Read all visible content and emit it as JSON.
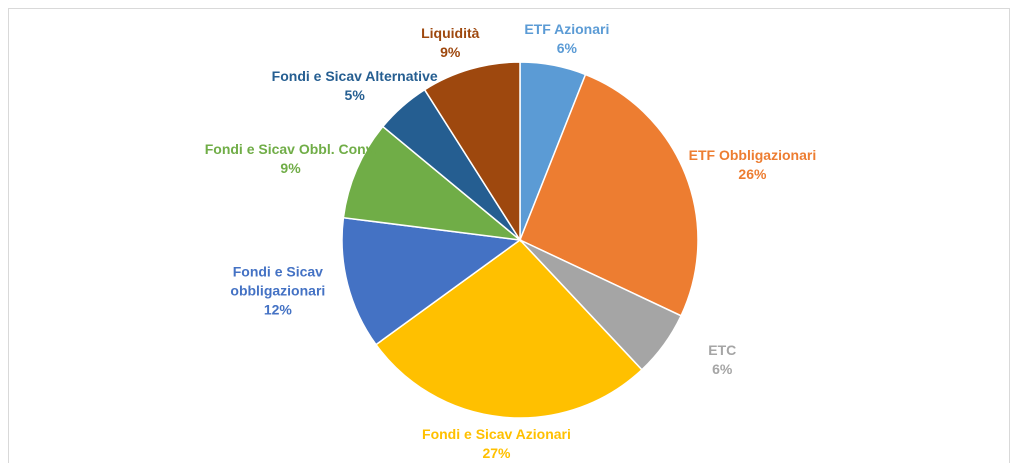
{
  "chart_data": {
    "type": "pie",
    "categories": [
      "ETF Azionari",
      "ETF Obbligazionari",
      "ETC",
      "Fondi e Sicav Azionari",
      "Fondi e Sicav obbligazionari",
      "Fondi e Sicav Obbl. Conv.",
      "Fondi e Sicav Alternative",
      "Liquidità"
    ],
    "values": [
      6,
      26,
      6,
      27,
      12,
      9,
      5,
      9
    ],
    "value_labels": [
      "6%",
      "26%",
      "6%",
      "27%",
      "12%",
      "9%",
      "5%",
      "9%"
    ],
    "colors": [
      "#5b9bd5",
      "#ed7d31",
      "#a5a5a5",
      "#ffc000",
      "#4472c4",
      "#70ad47",
      "#255e91",
      "#9e480e"
    ]
  }
}
